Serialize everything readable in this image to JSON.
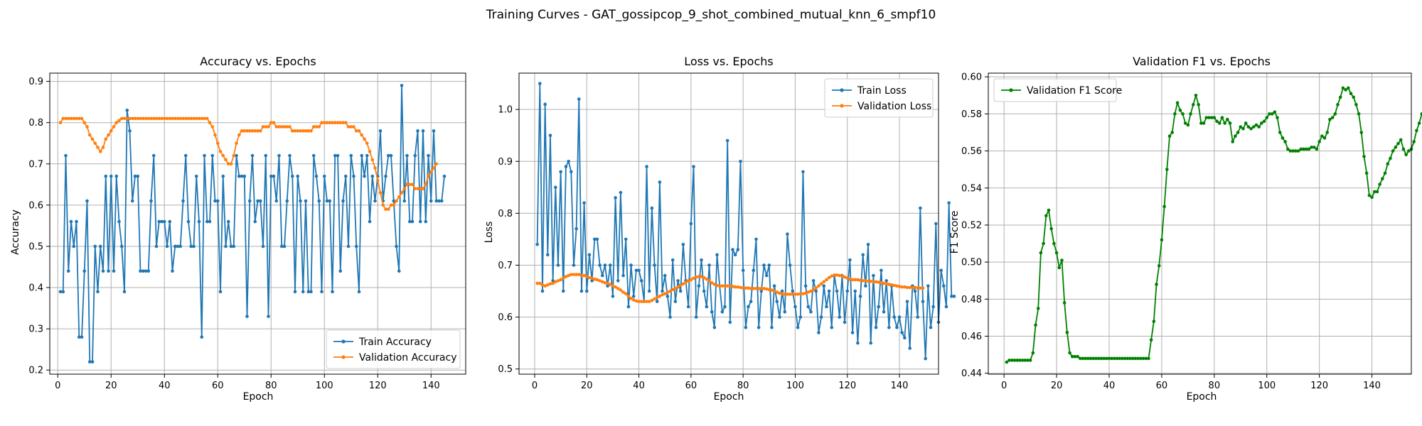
{
  "suptitle": "Training Curves - GAT_gossipcop_9_shot_combined_mutual_knn_6_smpf10",
  "colors": {
    "train": "#1f77b4",
    "val": "#ff7f0e",
    "f1": "#008000"
  },
  "chart_data": [
    {
      "type": "line",
      "title": "Accuracy vs. Epochs",
      "xlabel": "Epoch",
      "ylabel": "Accuracy",
      "xlim": [
        -3,
        153
      ],
      "ylim": [
        0.19,
        0.92
      ],
      "xticks": [
        0,
        20,
        40,
        60,
        80,
        100,
        120,
        140
      ],
      "yticks": [
        0.2,
        0.3,
        0.4,
        0.5,
        0.6,
        0.7,
        0.8,
        0.9
      ],
      "grid": true,
      "legend": "lower-right",
      "series": [
        {
          "name": "Train Accuracy",
          "color": "#1f77b4",
          "values": [
            0.39,
            0.39,
            0.72,
            0.44,
            0.56,
            0.5,
            0.56,
            0.28,
            0.28,
            0.44,
            0.61,
            0.22,
            0.22,
            0.5,
            0.39,
            0.5,
            0.44,
            0.67,
            0.44,
            0.67,
            0.44,
            0.67,
            0.56,
            0.5,
            0.39,
            0.83,
            0.78,
            0.61,
            0.67,
            0.67,
            0.44,
            0.44,
            0.44,
            0.44,
            0.61,
            0.72,
            0.5,
            0.56,
            0.56,
            0.56,
            0.5,
            0.56,
            0.44,
            0.5,
            0.5,
            0.5,
            0.61,
            0.72,
            0.56,
            0.5,
            0.5,
            0.67,
            0.56,
            0.28,
            0.72,
            0.56,
            0.56,
            0.72,
            0.61,
            0.61,
            0.39,
            0.67,
            0.5,
            0.56,
            0.5,
            0.5,
            0.72,
            0.67,
            0.67,
            0.67,
            0.33,
            0.61,
            0.72,
            0.56,
            0.61,
            0.61,
            0.5,
            0.72,
            0.33,
            0.67,
            0.67,
            0.61,
            0.72,
            0.5,
            0.5,
            0.61,
            0.72,
            0.67,
            0.39,
            0.67,
            0.61,
            0.39,
            0.61,
            0.39,
            0.39,
            0.72,
            0.67,
            0.61,
            0.39,
            0.67,
            0.61,
            0.61,
            0.39,
            0.72,
            0.72,
            0.44,
            0.61,
            0.67,
            0.5,
            0.72,
            0.67,
            0.5,
            0.39,
            0.72,
            0.67,
            0.72,
            0.56,
            0.67,
            0.61,
            0.67,
            0.78,
            0.61,
            0.67,
            0.72,
            0.72,
            0.61,
            0.5,
            0.44,
            0.89,
            0.61,
            0.72,
            0.56,
            0.56,
            0.72,
            0.78,
            0.56,
            0.78,
            0.56,
            0.72,
            0.61,
            0.78,
            0.61,
            0.61,
            0.61,
            0.67
          ]
        },
        {
          "name": "Validation Accuracy",
          "color": "#ff7f0e",
          "values": [
            0.8,
            0.81,
            0.81,
            0.81,
            0.81,
            0.81,
            0.81,
            0.81,
            0.81,
            0.8,
            0.79,
            0.77,
            0.76,
            0.75,
            0.74,
            0.73,
            0.74,
            0.76,
            0.77,
            0.78,
            0.79,
            0.8,
            0.805,
            0.81,
            0.81,
            0.81,
            0.81,
            0.81,
            0.81,
            0.81,
            0.81,
            0.81,
            0.81,
            0.81,
            0.81,
            0.81,
            0.81,
            0.81,
            0.81,
            0.81,
            0.81,
            0.81,
            0.81,
            0.81,
            0.81,
            0.81,
            0.81,
            0.81,
            0.81,
            0.81,
            0.81,
            0.81,
            0.81,
            0.81,
            0.81,
            0.81,
            0.8,
            0.79,
            0.77,
            0.75,
            0.73,
            0.72,
            0.71,
            0.7,
            0.7,
            0.72,
            0.75,
            0.77,
            0.78,
            0.78,
            0.78,
            0.78,
            0.78,
            0.78,
            0.78,
            0.78,
            0.79,
            0.79,
            0.79,
            0.8,
            0.8,
            0.79,
            0.79,
            0.79,
            0.79,
            0.79,
            0.79,
            0.78,
            0.78,
            0.78,
            0.78,
            0.78,
            0.78,
            0.78,
            0.78,
            0.79,
            0.79,
            0.79,
            0.8,
            0.8,
            0.8,
            0.8,
            0.8,
            0.8,
            0.8,
            0.8,
            0.8,
            0.8,
            0.79,
            0.79,
            0.79,
            0.78,
            0.78,
            0.77,
            0.76,
            0.75,
            0.73,
            0.71,
            0.69,
            0.66,
            0.63,
            0.6,
            0.59,
            0.59,
            0.6,
            0.6,
            0.61,
            0.62,
            0.63,
            0.64,
            0.65,
            0.65,
            0.65,
            0.64,
            0.64,
            0.64,
            0.64,
            0.65,
            0.67,
            0.68,
            0.69,
            0.7
          ]
        }
      ]
    },
    {
      "type": "line",
      "title": "Loss vs. Epochs",
      "xlabel": "Epoch",
      "ylabel": "Loss",
      "xlim": [
        -6,
        155
      ],
      "ylim": [
        0.49,
        1.07
      ],
      "xticks": [
        0,
        20,
        40,
        60,
        80,
        100,
        120,
        140
      ],
      "yticks": [
        0.5,
        0.6,
        0.7,
        0.8,
        0.9,
        1.0
      ],
      "grid": true,
      "legend": "upper-right",
      "series": [
        {
          "name": "Train Loss",
          "color": "#1f77b4",
          "values": [
            0.74,
            1.05,
            0.65,
            1.01,
            0.72,
            0.95,
            0.67,
            0.85,
            0.7,
            0.88,
            0.65,
            0.89,
            0.9,
            0.88,
            0.7,
            0.77,
            1.02,
            0.65,
            0.82,
            0.65,
            0.72,
            0.67,
            0.75,
            0.75,
            0.7,
            0.68,
            0.7,
            0.66,
            0.7,
            0.64,
            0.83,
            0.67,
            0.84,
            0.68,
            0.75,
            0.62,
            0.7,
            0.64,
            0.69,
            0.69,
            0.67,
            0.63,
            0.89,
            0.65,
            0.81,
            0.7,
            0.63,
            0.86,
            0.65,
            0.68,
            0.64,
            0.6,
            0.71,
            0.63,
            0.67,
            0.65,
            0.74,
            0.67,
            0.62,
            0.78,
            0.89,
            0.6,
            0.66,
            0.71,
            0.65,
            0.62,
            0.7,
            0.61,
            0.58,
            0.72,
            0.66,
            0.61,
            0.62,
            0.94,
            0.59,
            0.73,
            0.72,
            0.73,
            0.9,
            0.69,
            0.58,
            0.62,
            0.63,
            0.69,
            0.75,
            0.58,
            0.65,
            0.7,
            0.68,
            0.7,
            0.58,
            0.66,
            0.63,
            0.6,
            0.65,
            0.61,
            0.76,
            0.7,
            0.65,
            0.62,
            0.58,
            0.6,
            0.88,
            0.66,
            0.62,
            0.61,
            0.67,
            0.65,
            0.57,
            0.6,
            0.66,
            0.62,
            0.65,
            0.58,
            0.68,
            0.65,
            0.6,
            0.68,
            0.59,
            0.65,
            0.71,
            0.57,
            0.65,
            0.55,
            0.64,
            0.72,
            0.66,
            0.74,
            0.55,
            0.68,
            0.58,
            0.62,
            0.69,
            0.61,
            0.67,
            0.58,
            0.66,
            0.6,
            0.58,
            0.6,
            0.57,
            0.56,
            0.63,
            0.54,
            0.66,
            0.65,
            0.6,
            0.81,
            0.63,
            0.52,
            0.66,
            0.58,
            0.62,
            0.78,
            0.59,
            0.69,
            0.66,
            0.62,
            0.82,
            0.64,
            0.64
          ]
        },
        {
          "name": "Validation Loss",
          "color": "#ff7f0e",
          "values": [
            0.665,
            0.665,
            0.662,
            0.66,
            0.662,
            0.664,
            0.665,
            0.668,
            0.67,
            0.672,
            0.675,
            0.678,
            0.68,
            0.682,
            0.682,
            0.682,
            0.682,
            0.68,
            0.68,
            0.678,
            0.676,
            0.675,
            0.673,
            0.672,
            0.67,
            0.668,
            0.666,
            0.665,
            0.663,
            0.66,
            0.658,
            0.655,
            0.652,
            0.648,
            0.645,
            0.64,
            0.636,
            0.633,
            0.631,
            0.63,
            0.63,
            0.63,
            0.63,
            0.63,
            0.632,
            0.635,
            0.638,
            0.64,
            0.643,
            0.645,
            0.648,
            0.65,
            0.653,
            0.655,
            0.658,
            0.661,
            0.664,
            0.667,
            0.67,
            0.672,
            0.675,
            0.677,
            0.678,
            0.678,
            0.676,
            0.673,
            0.67,
            0.666,
            0.663,
            0.661,
            0.66,
            0.66,
            0.66,
            0.66,
            0.66,
            0.659,
            0.658,
            0.658,
            0.657,
            0.656,
            0.656,
            0.656,
            0.655,
            0.655,
            0.655,
            0.655,
            0.655,
            0.655,
            0.654,
            0.653,
            0.652,
            0.65,
            0.648,
            0.646,
            0.645,
            0.644,
            0.644,
            0.644,
            0.644,
            0.644,
            0.644,
            0.645,
            0.645,
            0.646,
            0.648,
            0.65,
            0.653,
            0.656,
            0.66,
            0.664,
            0.668,
            0.672,
            0.676,
            0.679,
            0.681,
            0.681,
            0.68,
            0.679,
            0.677,
            0.675,
            0.673,
            0.672,
            0.672,
            0.672,
            0.671,
            0.67,
            0.67,
            0.669,
            0.669,
            0.668,
            0.668,
            0.667,
            0.666,
            0.665,
            0.664,
            0.663,
            0.662,
            0.661,
            0.66,
            0.659,
            0.658,
            0.658,
            0.657,
            0.657,
            0.657,
            0.657,
            0.656,
            0.656,
            0.656
          ]
        }
      ]
    },
    {
      "type": "line",
      "title": "Validation F1 vs. Epochs",
      "xlabel": "Epoch",
      "ylabel": "F1 Score",
      "xlim": [
        -6,
        155
      ],
      "ylim": [
        0.4395,
        0.602
      ],
      "xticks": [
        0,
        20,
        40,
        60,
        80,
        100,
        120,
        140
      ],
      "yticks": [
        0.44,
        0.46,
        0.48,
        0.5,
        0.52,
        0.54,
        0.56,
        0.58,
        0.6
      ],
      "grid": true,
      "legend": "upper-left",
      "series": [
        {
          "name": "Validation F1 Score",
          "color": "#008000",
          "values": [
            0.446,
            0.447,
            0.447,
            0.447,
            0.447,
            0.447,
            0.447,
            0.447,
            0.447,
            0.447,
            0.451,
            0.466,
            0.475,
            0.505,
            0.51,
            0.525,
            0.528,
            0.518,
            0.51,
            0.505,
            0.497,
            0.501,
            0.478,
            0.462,
            0.451,
            0.449,
            0.449,
            0.449,
            0.448,
            0.448,
            0.448,
            0.448,
            0.448,
            0.448,
            0.448,
            0.448,
            0.448,
            0.448,
            0.448,
            0.448,
            0.448,
            0.448,
            0.448,
            0.448,
            0.448,
            0.448,
            0.448,
            0.448,
            0.448,
            0.448,
            0.448,
            0.448,
            0.448,
            0.448,
            0.448,
            0.458,
            0.468,
            0.488,
            0.498,
            0.512,
            0.53,
            0.55,
            0.568,
            0.57,
            0.58,
            0.586,
            0.582,
            0.58,
            0.575,
            0.574,
            0.58,
            0.585,
            0.59,
            0.585,
            0.575,
            0.575,
            0.578,
            0.578,
            0.578,
            0.578,
            0.576,
            0.575,
            0.578,
            0.575,
            0.577,
            0.575,
            0.565,
            0.568,
            0.57,
            0.573,
            0.572,
            0.575,
            0.573,
            0.572,
            0.573,
            0.574,
            0.573,
            0.575,
            0.576,
            0.578,
            0.58,
            0.58,
            0.581,
            0.578,
            0.57,
            0.567,
            0.565,
            0.561,
            0.56,
            0.56,
            0.56,
            0.56,
            0.561,
            0.561,
            0.561,
            0.561,
            0.562,
            0.562,
            0.561,
            0.565,
            0.568,
            0.567,
            0.57,
            0.577,
            0.578,
            0.58,
            0.585,
            0.589,
            0.594,
            0.593,
            0.594,
            0.591,
            0.589,
            0.585,
            0.58,
            0.57,
            0.557,
            0.548,
            0.536,
            0.535,
            0.538,
            0.538,
            0.542,
            0.545,
            0.548,
            0.553,
            0.556,
            0.56,
            0.562,
            0.564,
            0.566,
            0.561,
            0.558,
            0.56,
            0.561,
            0.565,
            0.571,
            0.575,
            0.58,
            0.582
          ]
        }
      ]
    }
  ]
}
